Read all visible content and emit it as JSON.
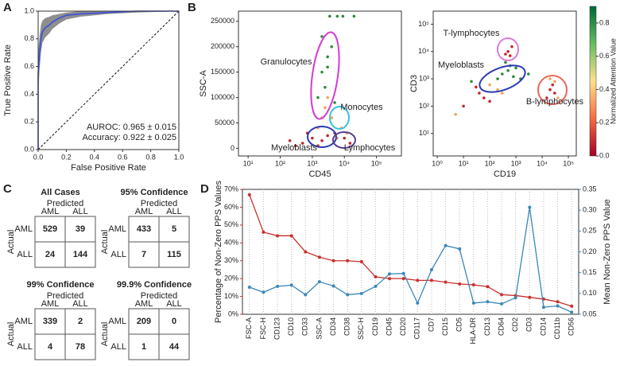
{
  "panel_labels": [
    "A",
    "B",
    "C",
    "D"
  ],
  "chart_data": [
    {
      "type": "roc",
      "xlabel": "False Positive Rate",
      "ylabel": "True Positive Rate",
      "xlim": [
        0,
        1
      ],
      "ylim": [
        0,
        1
      ],
      "xticks": [
        {
          "value": 0,
          "label": "0.0"
        },
        0.2,
        0.4,
        0.6,
        0.8,
        {
          "value": 1,
          "label": "1.0"
        }
      ],
      "yticks": [
        {
          "value": 0,
          "label": "0.0"
        },
        0.2,
        0.4,
        0.6,
        0.8,
        {
          "value": 1,
          "label": "1.0"
        }
      ],
      "diagonal": true,
      "x": [
        0,
        0,
        0.01,
        0.02,
        0.03,
        0.05,
        0.08,
        0.1,
        0.15,
        0.2,
        0.3,
        0.5,
        0.7,
        1
      ],
      "series": [
        {
          "color": "#3b4fd8",
          "band_color": "#7a7a7a",
          "values": [
            0,
            0.55,
            0.7,
            0.8,
            0.85,
            0.88,
            0.9,
            0.92,
            0.95,
            0.97,
            0.98,
            0.99,
            1,
            1
          ],
          "lower": [
            0,
            0.4,
            0.58,
            0.7,
            0.77,
            0.81,
            0.84,
            0.87,
            0.91,
            0.94,
            0.96,
            0.98,
            0.99,
            1
          ],
          "upper": [
            0,
            0.7,
            0.82,
            0.9,
            0.93,
            0.95,
            0.96,
            0.97,
            0.98,
            0.99,
            1,
            1,
            1,
            1
          ]
        }
      ],
      "annotations": [
        "AUROC: 0.965 ± 0.015",
        "Accuracy: 0.922 ± 0.025"
      ]
    },
    {
      "type": "scatter",
      "xlabel": "CD45",
      "ylabel": "SSC-A",
      "log_x": true,
      "log_y": false,
      "xlim": [
        5,
        600000
      ],
      "ylim": [
        -15000,
        270000
      ],
      "xticks": [
        {
          "value": 10,
          "label": "10¹"
        },
        {
          "value": 100,
          "label": "10²"
        },
        {
          "value": 1000,
          "label": "10³"
        },
        {
          "value": 10000,
          "label": "10⁴"
        },
        {
          "value": 100000,
          "label": "10⁵"
        }
      ],
      "yticks": [
        0,
        50000,
        100000,
        150000,
        200000,
        250000
      ],
      "series": [
        {
          "color": "#2e8b3e",
          "x": [
            2000,
            3000,
            2500,
            4000,
            1500,
            3500,
            6000,
            2000,
            5000,
            3000,
            9000,
            20000
          ],
          "values": [
            150000,
            180000,
            120000,
            200000,
            100000,
            260000,
            260000,
            220000,
            90000,
            160000,
            260000,
            260000
          ]
        },
        {
          "color": "#f4a35b",
          "x": [
            3000,
            2500,
            4000,
            8000,
            1500,
            12000,
            2000,
            6000
          ],
          "values": [
            100000,
            80000,
            60000,
            40000,
            40000,
            30000,
            60000,
            20000
          ]
        },
        {
          "color": "#c0272d",
          "x": [
            500,
            1000,
            300,
            2000,
            10000,
            15000,
            700,
            200,
            5000,
            3000,
            1500
          ],
          "values": [
            10000,
            20000,
            5000,
            15000,
            20000,
            10000,
            30000,
            15000,
            30000,
            25000,
            5000
          ]
        }
      ],
      "annotations": [
        {
          "text": "Granulocytes",
          "color": "#d63ad4"
        },
        {
          "text": "Monocytes",
          "color": "#33c4d8"
        },
        {
          "text": "Myeloblasts",
          "color": "#2b3bb5"
        },
        {
          "text": "Lymphocytes",
          "color": "#5b3a8c"
        }
      ]
    },
    {
      "type": "scatter",
      "xlabel": "CD19",
      "ylabel": "CD3",
      "log_x": true,
      "log_y": true,
      "xlim": [
        0.7,
        200000
      ],
      "ylim": [
        1.5,
        300000
      ],
      "xticks": [
        {
          "value": 1,
          "label": "10⁰"
        },
        {
          "value": 10,
          "label": "10¹"
        },
        {
          "value": 100,
          "label": "10²"
        },
        {
          "value": 1000,
          "label": "10³"
        },
        {
          "value": 10000,
          "label": "10⁴"
        },
        {
          "value": 100000,
          "label": "10⁵"
        }
      ],
      "yticks": [
        {
          "value": 10,
          "label": "10¹"
        },
        {
          "value": 100,
          "label": "10²"
        },
        {
          "value": 1000,
          "label": "10³"
        },
        {
          "value": 10000,
          "label": "10⁴"
        },
        {
          "value": 100000,
          "label": "10⁵"
        }
      ],
      "series": [
        {
          "color": "#2e8b3e",
          "x": [
            300,
            500,
            800,
            1500,
            200,
            600,
            3000,
            20,
            1000,
            400
          ],
          "values": [
            1500,
            2000,
            1200,
            1000,
            1000,
            3000,
            1500,
            800,
            2500,
            4000
          ]
        },
        {
          "color": "#f4a35b",
          "x": [
            100,
            200,
            30000,
            40000,
            300,
            5,
            20000
          ],
          "values": [
            600,
            400,
            800,
            200,
            300,
            50,
            1000
          ]
        },
        {
          "color": "#c0272d",
          "x": [
            40,
            60,
            30,
            100,
            500,
            700,
            400,
            20000,
            30000,
            25000,
            10,
            600,
            15000
          ],
          "values": [
            300,
            200,
            500,
            150,
            10000,
            15000,
            8000,
            400,
            300,
            600,
            100,
            7000,
            200
          ]
        }
      ],
      "annotations": [
        {
          "text": "T-lymphocytes",
          "color": "#e07ad8"
        },
        {
          "text": "Myeloblasts",
          "color": "#2b3bb5"
        },
        {
          "text": "B-lymphocytes",
          "color": "#e8675a"
        }
      ],
      "colorbar_label": "Normalized Attention Value",
      "clim": [
        0,
        0.9
      ],
      "colormap": [
        "#a50026",
        "#f46d43",
        "#fee08b",
        "#66bd63",
        "#006837"
      ],
      "colorbar_ticks": [
        {
          "value": 0,
          "label": "0.0"
        },
        0.2,
        0.4,
        0.6,
        0.8
      ]
    },
    {
      "type": "dual_line",
      "ylabel": "Percentage of Non-Zero PPS Values",
      "y2label": "Mean Non-Zero PPS Value",
      "categories": [
        "FSC-A",
        "FSC-H",
        "CD123",
        "CD10",
        "CD33",
        "SSC-A",
        "CD34",
        "CD38",
        "SSC-H",
        "CD19",
        "CD45",
        "CD20",
        "CD117",
        "CD7",
        "CD15",
        "CD5",
        "HLA-DR",
        "CD13",
        "CD64",
        "CD2",
        "CD3",
        "CD14",
        "CD11b",
        "CD56"
      ],
      "ylim": [
        0,
        70
      ],
      "y2lim": [
        0.05,
        0.35
      ],
      "yticks": [
        {
          "value": 0,
          "label": "0%"
        },
        {
          "value": 10,
          "label": "10%"
        },
        {
          "value": 20,
          "label": "20%"
        },
        {
          "value": 30,
          "label": "30%"
        },
        {
          "value": 40,
          "label": "40%"
        },
        {
          "value": 50,
          "label": "50%"
        },
        {
          "value": 60,
          "label": "60%"
        },
        {
          "value": 70,
          "label": "70%"
        }
      ],
      "y2ticks": [
        0.05,
        {
          "value": 0.1,
          "label": "0.10"
        },
        0.15,
        {
          "value": 0.2,
          "label": "0.20"
        },
        0.25,
        {
          "value": 0.3,
          "label": "0.30"
        },
        0.35
      ],
      "grid": true,
      "series": [
        {
          "color": "#c9302c",
          "values": [
            67,
            46,
            44,
            44,
            35,
            32,
            30,
            30,
            29.5,
            21,
            20,
            20,
            19,
            19,
            18,
            17,
            16.5,
            15.5,
            11,
            10.5,
            9.5,
            8.5,
            7,
            4.5
          ]
        },
        {
          "color": "#3a87b8",
          "axis": "y2",
          "values": [
            0.115,
            0.103,
            0.117,
            0.12,
            0.097,
            0.128,
            0.118,
            0.097,
            0.1,
            0.117,
            0.147,
            0.148,
            0.077,
            0.157,
            0.215,
            0.207,
            0.077,
            0.08,
            0.075,
            0.09,
            0.307,
            0.067,
            0.07,
            0.055
          ]
        }
      ]
    }
  ],
  "confusion": {
    "predicted_label": "Predicted",
    "actual_label": "Actual",
    "classes": [
      "AML",
      "ALL"
    ],
    "matrices": [
      {
        "title": "All Cases",
        "matrix": [
          [
            529,
            39
          ],
          [
            24,
            144
          ]
        ]
      },
      {
        "title": "95% Confidence",
        "matrix": [
          [
            433,
            5
          ],
          [
            7,
            115
          ]
        ]
      },
      {
        "title": "99% Confidence",
        "matrix": [
          [
            339,
            2
          ],
          [
            4,
            78
          ]
        ]
      },
      {
        "title": "99.9% Confidence",
        "matrix": [
          [
            209,
            0
          ],
          [
            1,
            44
          ]
        ]
      }
    ]
  }
}
